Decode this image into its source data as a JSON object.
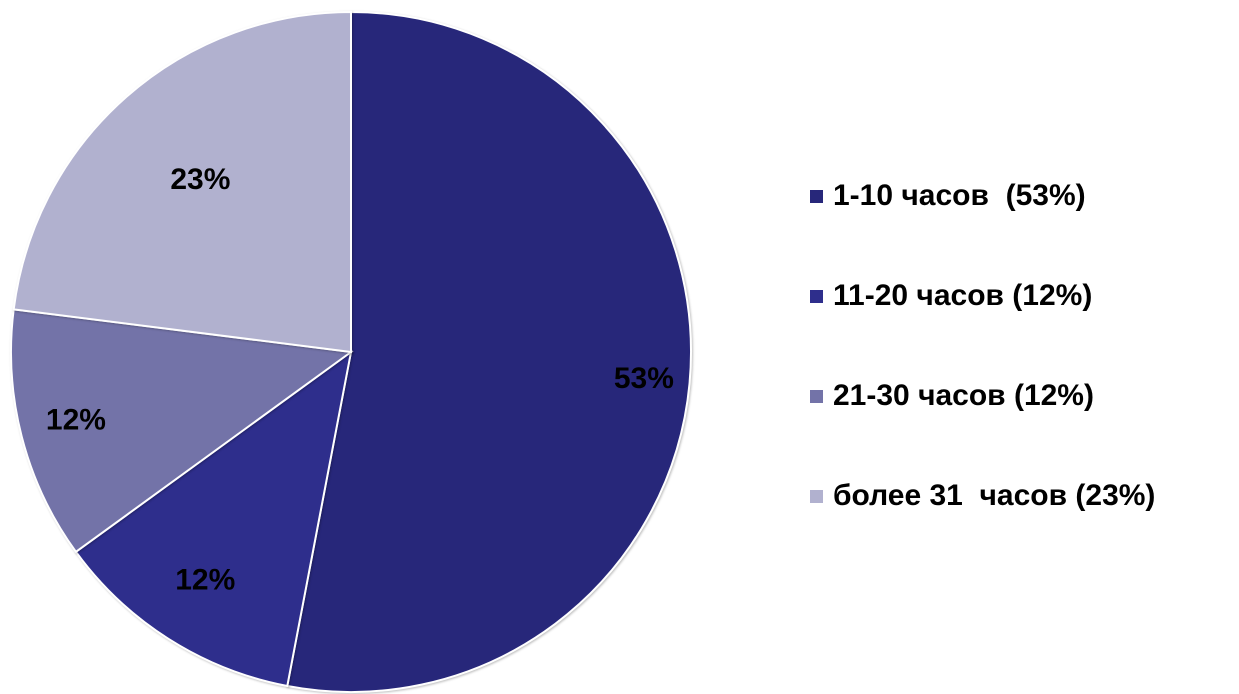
{
  "chart_data": {
    "type": "pie",
    "categories": [
      "1-10 часов  (53%)",
      "11-20 часов (12%)",
      "21-30 часов (12%)",
      "более 31  часов (23%)"
    ],
    "values": [
      53,
      12,
      12,
      23
    ],
    "data_labels": [
      "53%",
      "12%",
      "12%",
      "23%"
    ],
    "colors": [
      "#27277a",
      "#2e2e8c",
      "#7373a8",
      "#b1b1cf"
    ],
    "start_angle_deg": 0,
    "direction": "clockwise",
    "legend_position": "right"
  }
}
